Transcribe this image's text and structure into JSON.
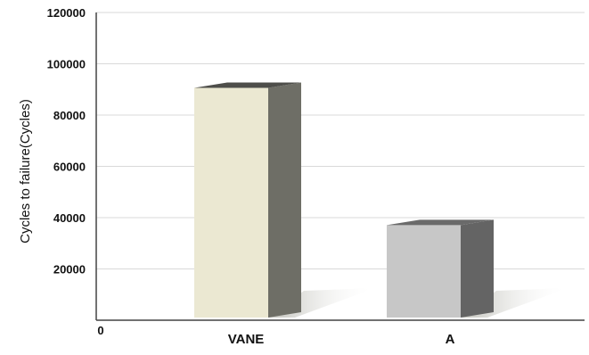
{
  "chart_data": {
    "type": "bar",
    "title": "",
    "xlabel": "",
    "ylabel": "Cycles to failure(Cycles)",
    "categories": [
      "VANE",
      "A"
    ],
    "values": [
      92000,
      38500
    ],
    "ylim": [
      0,
      120000
    ],
    "y_ticks": [
      20000,
      40000,
      60000,
      80000,
      100000,
      120000
    ],
    "y_tick_labels": [
      "20000",
      "40000",
      "60000",
      "80000",
      "100000",
      "120000"
    ],
    "origin_label": "0",
    "grid": true,
    "legend": "none",
    "style": "3d",
    "colors": {
      "bar_front": [
        "#ebe8d2",
        "#c7c7c7"
      ],
      "bar_side": [
        "#6e6e66",
        "#646464"
      ],
      "bar_top": [
        "#4e4e4a",
        "#6a6a6a"
      ],
      "grid": "#d9d9d9",
      "axis": "#444444"
    }
  }
}
